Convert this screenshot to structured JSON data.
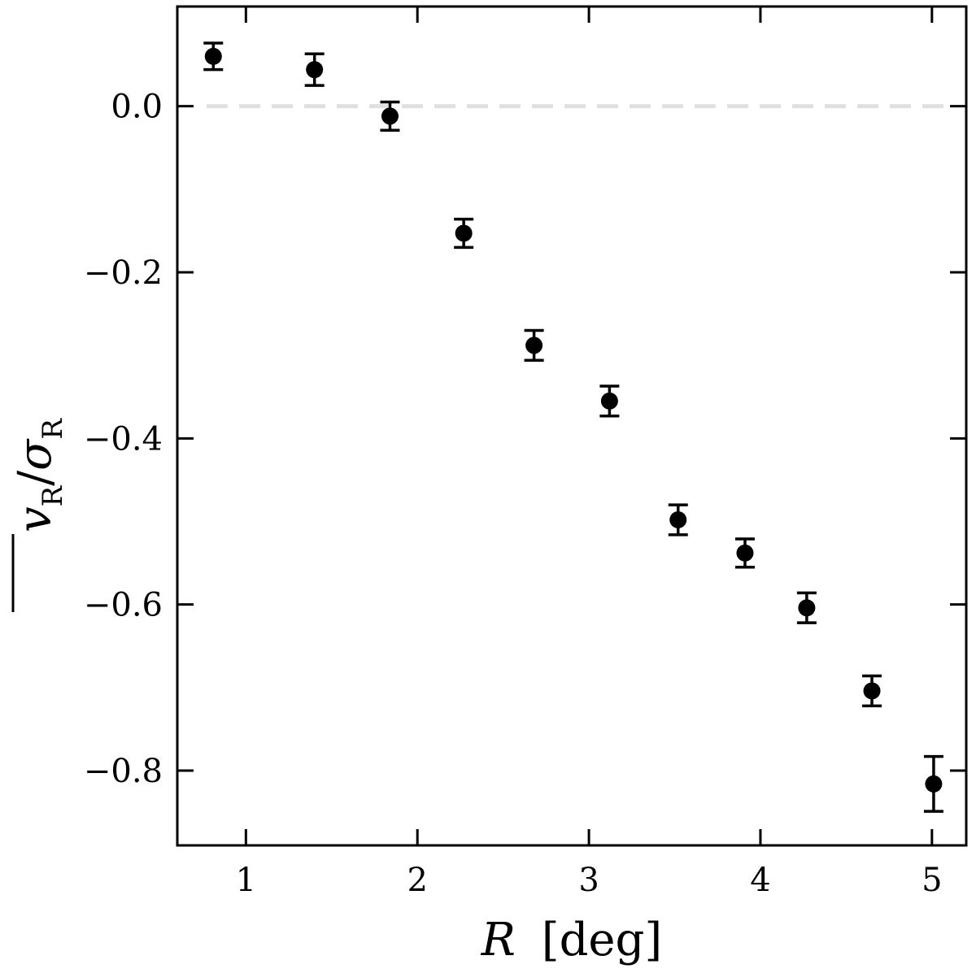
{
  "chart_data": {
    "type": "scatter",
    "xlabel_symbol": "R",
    "xlabel_unit": "[deg]",
    "ylabel_numerator": "v",
    "ylabel_numerator_sub": "R",
    "ylabel_slash": "/",
    "ylabel_denominator": "σ",
    "ylabel_denominator_sub": "R",
    "xlim": [
      0.6,
      5.2
    ],
    "ylim": [
      -0.89,
      0.12
    ],
    "xticks": [
      1,
      2,
      3,
      4,
      5
    ],
    "xtick_labels": [
      "1",
      "2",
      "3",
      "4",
      "5"
    ],
    "yticks": [
      0.0,
      -0.2,
      -0.4,
      -0.6,
      -0.8
    ],
    "ytick_labels": [
      "0.0",
      "−0.2",
      "−0.4",
      "−0.6",
      "−0.8"
    ],
    "reference_line": {
      "y": 0.0,
      "style": "dashed",
      "color": "#e0e0e0"
    },
    "marker_color": "#000000",
    "grid": false,
    "legend": "none",
    "points": [
      {
        "x": 0.81,
        "y": 0.06,
        "yerr": 0.016
      },
      {
        "x": 1.4,
        "y": 0.044,
        "yerr": 0.019
      },
      {
        "x": 1.84,
        "y": -0.012,
        "yerr": 0.017
      },
      {
        "x": 2.27,
        "y": -0.153,
        "yerr": 0.017
      },
      {
        "x": 2.68,
        "y": -0.288,
        "yerr": 0.018
      },
      {
        "x": 3.12,
        "y": -0.355,
        "yerr": 0.018
      },
      {
        "x": 3.52,
        "y": -0.498,
        "yerr": 0.018
      },
      {
        "x": 3.91,
        "y": -0.538,
        "yerr": 0.017
      },
      {
        "x": 4.27,
        "y": -0.604,
        "yerr": 0.018
      },
      {
        "x": 4.65,
        "y": -0.704,
        "yerr": 0.018
      },
      {
        "x": 5.01,
        "y": -0.816,
        "yerr": 0.033
      }
    ]
  }
}
